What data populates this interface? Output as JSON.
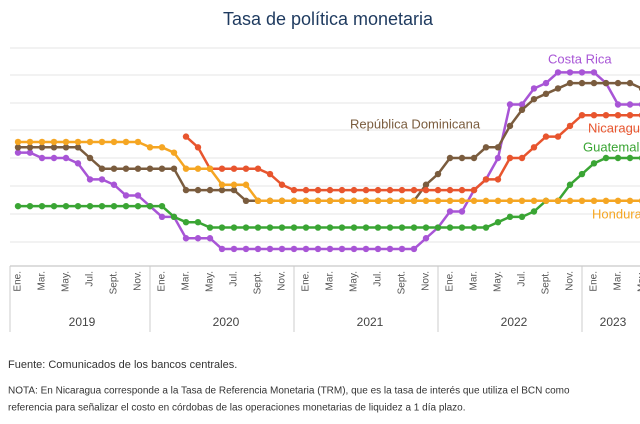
{
  "chart_data": {
    "type": "line",
    "title": "Tasa de política monetaria",
    "categories": [
      "Ene.",
      null,
      "Mar.",
      null,
      "May.",
      null,
      "Jul.",
      null,
      "Sept.",
      null,
      "Nov.",
      null,
      "Ene.",
      null,
      "Mar.",
      null,
      "May.",
      null,
      "Jul.",
      null,
      "Sept.",
      null,
      "Nov.",
      null,
      "Ene.",
      null,
      "Mar.",
      null,
      "May.",
      null,
      "Jul.",
      null,
      "Sept.",
      null,
      "Nov.",
      null,
      "Ene.",
      null,
      "Mar.",
      null,
      "May.",
      null,
      "Jul.",
      null,
      "Sept.",
      null,
      "Nov.",
      null,
      "Ene.",
      null,
      "Mar.",
      null,
      "May."
    ],
    "years": [
      "2019",
      "2020",
      "2021",
      "2022",
      "2023"
    ],
    "ylim": [
      0,
      10
    ],
    "series": [
      {
        "name": "Costa Rica",
        "color": "#a855d6",
        "values": [
          5.25,
          5.25,
          5.0,
          5.0,
          5.0,
          4.75,
          4.0,
          4.0,
          3.75,
          3.25,
          3.25,
          2.75,
          2.25,
          2.25,
          1.25,
          1.25,
          1.25,
          0.75,
          0.75,
          0.75,
          0.75,
          0.75,
          0.75,
          0.75,
          0.75,
          0.75,
          0.75,
          0.75,
          0.75,
          0.75,
          0.75,
          0.75,
          0.75,
          0.75,
          1.25,
          1.75,
          2.5,
          2.5,
          3.5,
          4.0,
          5.0,
          7.5,
          7.5,
          8.25,
          8.5,
          9.0,
          9.0,
          9.0,
          9.0,
          8.5,
          7.5,
          7.5,
          7.5
        ]
      },
      {
        "name": "República Dominicana",
        "color": "#7a5c3e",
        "values": [
          5.5,
          5.5,
          5.5,
          5.5,
          5.5,
          5.5,
          5.0,
          4.5,
          4.5,
          4.5,
          4.5,
          4.5,
          4.5,
          4.5,
          3.5,
          3.5,
          3.5,
          3.5,
          3.5,
          3.0,
          3.0,
          3.0,
          3.0,
          3.0,
          3.0,
          3.0,
          3.0,
          3.0,
          3.0,
          3.0,
          3.0,
          3.0,
          3.0,
          3.0,
          3.75,
          4.25,
          5.0,
          5.0,
          5.0,
          5.5,
          5.5,
          6.5,
          7.25,
          7.75,
          8.0,
          8.25,
          8.5,
          8.5,
          8.5,
          8.5,
          8.5,
          8.5,
          8.25
        ]
      },
      {
        "name": "Nicaragua",
        "color": "#e8552e",
        "values": [
          null,
          null,
          null,
          null,
          null,
          null,
          null,
          null,
          null,
          null,
          null,
          null,
          null,
          null,
          6.0,
          5.5,
          4.5,
          4.5,
          4.5,
          4.5,
          4.5,
          4.25,
          3.75,
          3.5,
          3.5,
          3.5,
          3.5,
          3.5,
          3.5,
          3.5,
          3.5,
          3.5,
          3.5,
          3.5,
          3.5,
          3.5,
          3.5,
          3.5,
          3.5,
          4.0,
          4.0,
          5.0,
          5.0,
          5.5,
          6.0,
          6.0,
          6.5,
          7.0,
          7.0,
          7.0,
          7.0,
          7.0,
          7.0
        ]
      },
      {
        "name": "Guatemala",
        "color": "#3aa534",
        "values": [
          2.75,
          2.75,
          2.75,
          2.75,
          2.75,
          2.75,
          2.75,
          2.75,
          2.75,
          2.75,
          2.75,
          2.75,
          2.75,
          2.25,
          2.0,
          2.0,
          1.75,
          1.75,
          1.75,
          1.75,
          1.75,
          1.75,
          1.75,
          1.75,
          1.75,
          1.75,
          1.75,
          1.75,
          1.75,
          1.75,
          1.75,
          1.75,
          1.75,
          1.75,
          1.75,
          1.75,
          1.75,
          1.75,
          1.75,
          1.75,
          2.0,
          2.25,
          2.25,
          2.5,
          3.0,
          3.0,
          3.75,
          4.25,
          4.75,
          5.0,
          5.0,
          5.0,
          5.0
        ]
      },
      {
        "name": "Honduras",
        "color": "#f5a623",
        "values": [
          5.75,
          5.75,
          5.75,
          5.75,
          5.75,
          5.75,
          5.75,
          5.75,
          5.75,
          5.75,
          5.75,
          5.5,
          5.5,
          5.25,
          4.5,
          4.5,
          4.5,
          3.75,
          3.75,
          3.75,
          3.0,
          3.0,
          3.0,
          3.0,
          3.0,
          3.0,
          3.0,
          3.0,
          3.0,
          3.0,
          3.0,
          3.0,
          3.0,
          3.0,
          3.0,
          3.0,
          3.0,
          3.0,
          3.0,
          3.0,
          3.0,
          3.0,
          3.0,
          3.0,
          3.0,
          3.0,
          3.0,
          3.0,
          3.0,
          3.0,
          3.0,
          3.0,
          3.0
        ]
      }
    ],
    "source": "Fuente: Comunicados de los bancos centrales.",
    "note": [
      "NOTA: En Nicaragua corresponde a la Tasa de Referencia Monetaria (TRM), que es la tasa de interés que utiliza el BCN como",
      "referencia para señalizar el costo en córdobas de las operaciones monetarias de liquidez a 1 día plazo."
    ]
  }
}
